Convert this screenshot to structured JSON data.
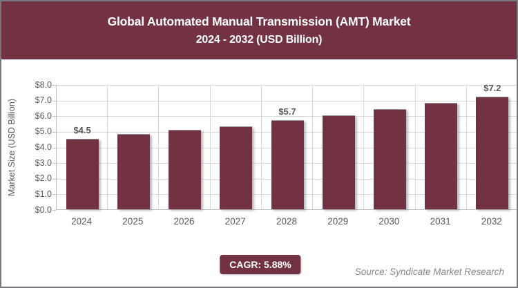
{
  "header": {
    "title_line1": "Global Automated Manual Transmission (AMT) Market",
    "title_line2": "2024 - 2032 (USD Billion)"
  },
  "chart_data": {
    "type": "bar",
    "title": "Global Automated Manual Transmission (AMT) Market 2024 - 2032 (USD Billion)",
    "categories": [
      "2024",
      "2025",
      "2026",
      "2027",
      "2028",
      "2029",
      "2030",
      "2031",
      "2032"
    ],
    "values": [
      4.5,
      4.8,
      5.1,
      5.3,
      5.7,
      6.0,
      6.4,
      6.8,
      7.2
    ],
    "bar_labels": [
      "$4.5",
      null,
      null,
      null,
      "$5.7",
      null,
      null,
      null,
      "$7.2"
    ],
    "xlabel": "",
    "ylabel": "Market Size (USD Billion)",
    "ylim": [
      0,
      8
    ],
    "y_tick_step": 1,
    "y_ticks": [
      "$0.0",
      "$1.0",
      "$2.0",
      "$3.0",
      "$4.0",
      "$5.0",
      "$6.0",
      "$7.0",
      "$8.0"
    ],
    "grid": "horizontal major gridlines and vertical category separators, light gray",
    "legend": null,
    "bar_color": "#733243"
  },
  "footer": {
    "cagr_label": "CAGR: 5.88%",
    "source": "Source: Syndicate Market Research"
  },
  "colors": {
    "accent_maroon": "#733243",
    "axis_text": "#595959",
    "gridline": "#d9d9d9",
    "axis_line": "#bfbfbf",
    "frame_border": "#77787b",
    "source_text": "#85878a",
    "title_text": "#ffffff"
  }
}
